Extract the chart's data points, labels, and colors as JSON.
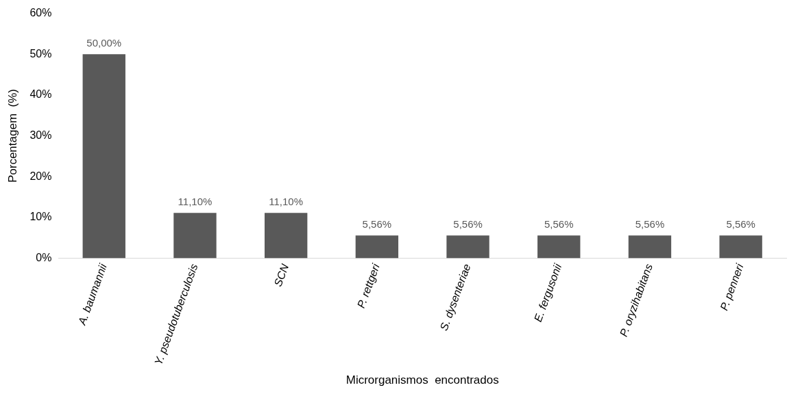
{
  "chart_data": {
    "type": "bar",
    "xlabel": "Microrganismos  encontrados",
    "ylabel": "Porcentagem  (%)",
    "categories": [
      "A. baumannii",
      "Y. pseudotuberculosis",
      "SCN",
      "P. rettgeri",
      "S. dysenteriae",
      "E. fergusonii",
      "P. oryzihabitans",
      "P. penneri"
    ],
    "values": [
      50,
      11.1,
      11.1,
      5.56,
      5.56,
      5.56,
      5.56,
      5.56
    ],
    "value_labels": [
      "50,00%",
      "11,10%",
      "11,10%",
      "5,56%",
      "5,56%",
      "5,56%",
      "5,56%",
      "5,56%"
    ],
    "color": "#595959",
    "ylim": [
      0,
      60
    ],
    "yticks": [
      {
        "value": 0,
        "label": "0%"
      },
      {
        "value": 10,
        "label": "10%"
      },
      {
        "value": 20,
        "label": "20%"
      },
      {
        "value": 30,
        "label": "30%"
      },
      {
        "value": 40,
        "label": "40%"
      },
      {
        "value": 50,
        "label": "50%"
      },
      {
        "value": 60,
        "label": "60%"
      }
    ],
    "grid": false
  }
}
